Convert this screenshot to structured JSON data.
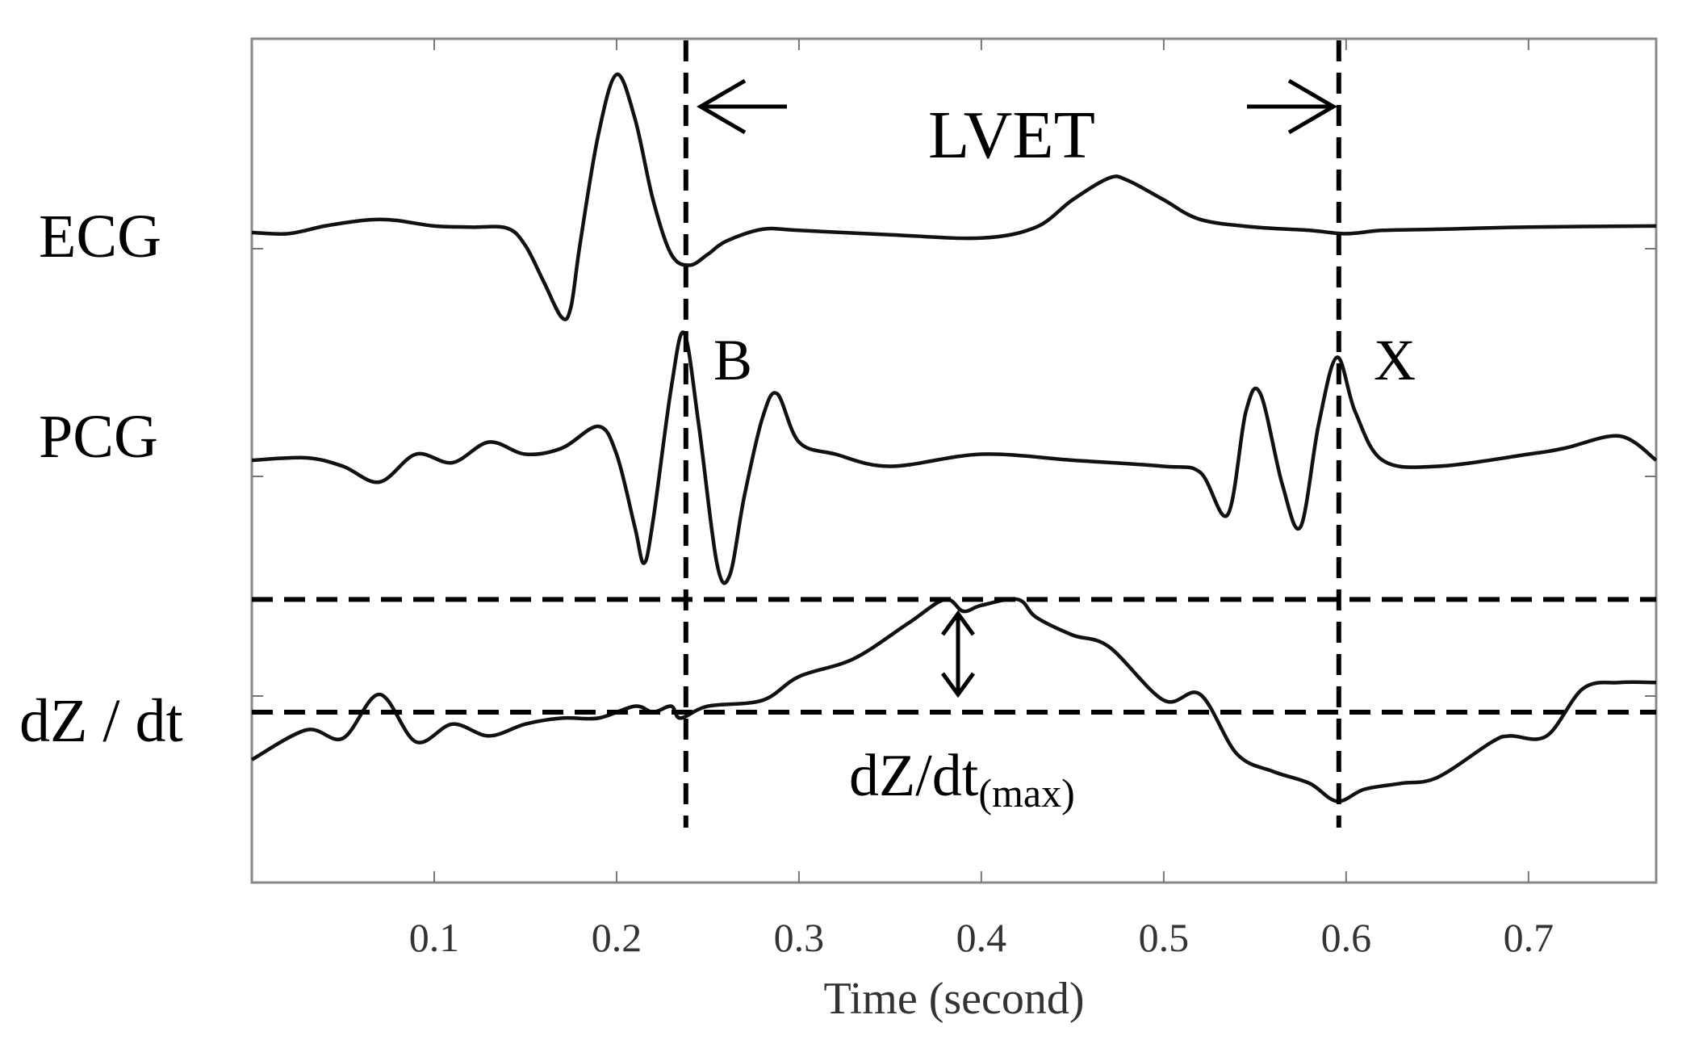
{
  "chart_data": {
    "type": "line",
    "xlabel": "Time (second)",
    "xlim": [
      0.0,
      0.77
    ],
    "xticks": [
      0.1,
      0.2,
      0.3,
      0.4,
      0.5,
      0.6,
      0.7
    ],
    "xtick_labels": [
      "0.1",
      "0.2",
      "0.3",
      "0.4",
      "0.5",
      "0.6",
      "0.7"
    ],
    "series": [
      {
        "name": "ECG",
        "label": "ECG",
        "x": [
          0.0,
          0.02,
          0.04,
          0.06,
          0.07,
          0.08,
          0.1,
          0.12,
          0.14,
          0.15,
          0.16,
          0.17,
          0.175,
          0.18,
          0.19,
          0.2,
          0.21,
          0.22,
          0.23,
          0.24,
          0.25,
          0.26,
          0.28,
          0.3,
          0.35,
          0.4,
          0.43,
          0.45,
          0.47,
          0.48,
          0.5,
          0.52,
          0.55,
          0.58,
          0.6,
          0.62,
          0.65,
          0.7,
          0.77
        ],
        "y": [
          0.0,
          -0.01,
          0.06,
          0.11,
          0.12,
          0.11,
          0.06,
          0.05,
          0.04,
          -0.12,
          -0.45,
          -0.78,
          -0.68,
          -0.1,
          0.9,
          1.45,
          1.05,
          0.3,
          -0.2,
          -0.3,
          -0.2,
          -0.08,
          0.03,
          0.02,
          -0.02,
          -0.05,
          0.05,
          0.3,
          0.5,
          0.48,
          0.3,
          0.12,
          0.05,
          0.02,
          -0.01,
          0.02,
          0.03,
          0.05,
          0.06
        ]
      },
      {
        "name": "PCG",
        "label": "PCG",
        "x": [
          0.0,
          0.03,
          0.05,
          0.07,
          0.09,
          0.11,
          0.13,
          0.15,
          0.17,
          0.19,
          0.2,
          0.21,
          0.215,
          0.22,
          0.23,
          0.237,
          0.245,
          0.255,
          0.262,
          0.27,
          0.28,
          0.288,
          0.3,
          0.32,
          0.35,
          0.4,
          0.45,
          0.5,
          0.52,
          0.535,
          0.545,
          0.553,
          0.565,
          0.575,
          0.585,
          0.595,
          0.605,
          0.62,
          0.65,
          0.7,
          0.72,
          0.75,
          0.77
        ],
        "y": [
          0.0,
          0.02,
          -0.05,
          -0.18,
          0.05,
          -0.02,
          0.15,
          0.05,
          0.1,
          0.28,
          0.05,
          -0.55,
          -0.85,
          -0.5,
          0.6,
          1.05,
          0.3,
          -0.85,
          -0.95,
          -0.3,
          0.35,
          0.55,
          0.15,
          0.05,
          -0.05,
          0.05,
          0.0,
          -0.05,
          -0.1,
          -0.45,
          0.4,
          0.55,
          -0.2,
          -0.55,
          0.3,
          0.85,
          0.4,
          0.0,
          -0.05,
          0.05,
          0.1,
          0.2,
          0.0
        ]
      },
      {
        "name": "dZ/dt",
        "label": "dZ / dt",
        "x": [
          0.0,
          0.03,
          0.05,
          0.07,
          0.09,
          0.11,
          0.13,
          0.15,
          0.17,
          0.19,
          0.21,
          0.22,
          0.23,
          0.235,
          0.25,
          0.28,
          0.3,
          0.33,
          0.36,
          0.38,
          0.39,
          0.4,
          0.42,
          0.43,
          0.45,
          0.47,
          0.5,
          0.52,
          0.54,
          0.56,
          0.58,
          0.595,
          0.61,
          0.63,
          0.65,
          0.68,
          0.69,
          0.71,
          0.73,
          0.75,
          0.77
        ],
        "y": [
          -0.4,
          -0.15,
          -0.22,
          0.15,
          -0.25,
          -0.1,
          -0.2,
          -0.1,
          -0.05,
          -0.05,
          0.05,
          0.0,
          0.05,
          -0.05,
          0.05,
          0.1,
          0.3,
          0.45,
          0.75,
          0.95,
          0.85,
          0.9,
          0.95,
          0.8,
          0.65,
          0.55,
          0.1,
          0.15,
          -0.35,
          -0.5,
          -0.6,
          -0.75,
          -0.65,
          -0.6,
          -0.55,
          -0.25,
          -0.2,
          -0.2,
          0.2,
          0.25,
          0.25
        ]
      }
    ],
    "vlines": [
      {
        "name": "B",
        "label": "B",
        "x": 0.238
      },
      {
        "name": "X",
        "label": "X",
        "x": 0.596
      }
    ],
    "hlines": [
      {
        "name": "dzdt-max-level",
        "series": "dZ/dt",
        "y": 0.95
      },
      {
        "name": "dzdt-baseline",
        "series": "dZ/dt",
        "y": 0.0
      }
    ],
    "annotations": {
      "lvet": "LVET",
      "dzdt_max_base": "dZ/dt",
      "dzdt_max_sub": "(max)"
    }
  }
}
